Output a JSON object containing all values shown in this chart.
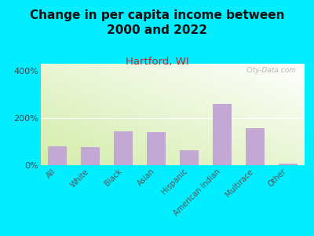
{
  "title": "Change in per capita income between\n2000 and 2022",
  "subtitle": "Hartford, WI",
  "categories": [
    "All",
    "White",
    "Black",
    "Asian",
    "Hispanic",
    "American Indian",
    "Multirace",
    "Other"
  ],
  "values": [
    80,
    78,
    145,
    140,
    65,
    260,
    158,
    8
  ],
  "bar_color": "#c4a8d4",
  "title_fontsize": 11,
  "subtitle_fontsize": 9.5,
  "subtitle_color": "#cc2222",
  "background_outer": "#00eeff",
  "ytick_labels": [
    "0%",
    "200%",
    "400%"
  ],
  "ytick_vals": [
    0,
    200,
    400
  ],
  "ylim": [
    0,
    430
  ],
  "watermark": "City-Data.com"
}
